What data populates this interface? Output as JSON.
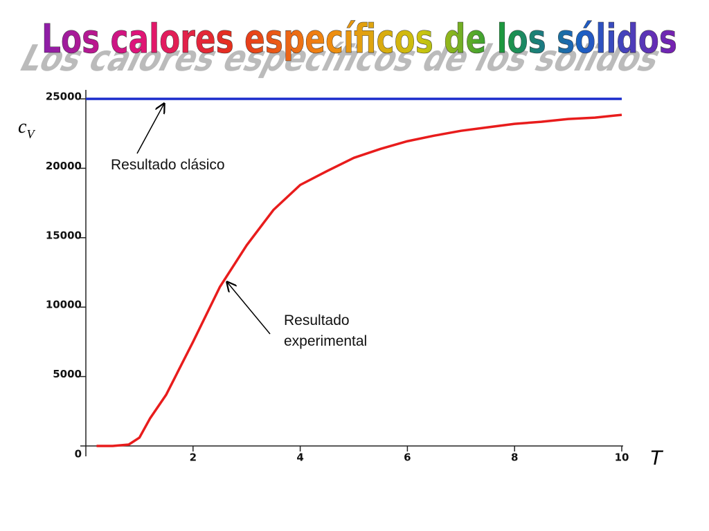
{
  "chart_data": {
    "type": "line",
    "title": "Los calores específicos de los sólidos",
    "y_label": {
      "main": "c",
      "sub": "V"
    },
    "x_label": "T",
    "xlim": [
      0,
      10
    ],
    "xticks": [
      2,
      4,
      6,
      8,
      10
    ],
    "ylim": [
      0,
      25000
    ],
    "yticks": [
      0,
      5000,
      10000,
      15000,
      20000,
      25000
    ],
    "series": [
      {
        "name": "Resultado clásico",
        "color": "#1a2ccc",
        "x": [
          0,
          10
        ],
        "values": [
          25000,
          25000
        ]
      },
      {
        "name": "Resultado experimental",
        "color": "#e81c1c",
        "x": [
          0.2,
          0.5,
          0.8,
          1.0,
          1.2,
          1.5,
          2.0,
          2.5,
          3.0,
          3.5,
          4.0,
          4.5,
          5.0,
          5.5,
          6.0,
          6.5,
          7.0,
          7.5,
          8.0,
          8.5,
          9.0,
          9.5,
          10.0
        ],
        "values": [
          0,
          0,
          100,
          600,
          2000,
          3700,
          7500,
          11450,
          14450,
          17000,
          18800,
          19800,
          20750,
          21400,
          21950,
          22350,
          22700,
          22950,
          23200,
          23350,
          23550,
          23650,
          23850
        ]
      }
    ],
    "annotations": [
      {
        "lines": [
          "Resultado clásico"
        ]
      },
      {
        "lines": [
          "Resultado",
          "experimental"
        ]
      }
    ]
  }
}
